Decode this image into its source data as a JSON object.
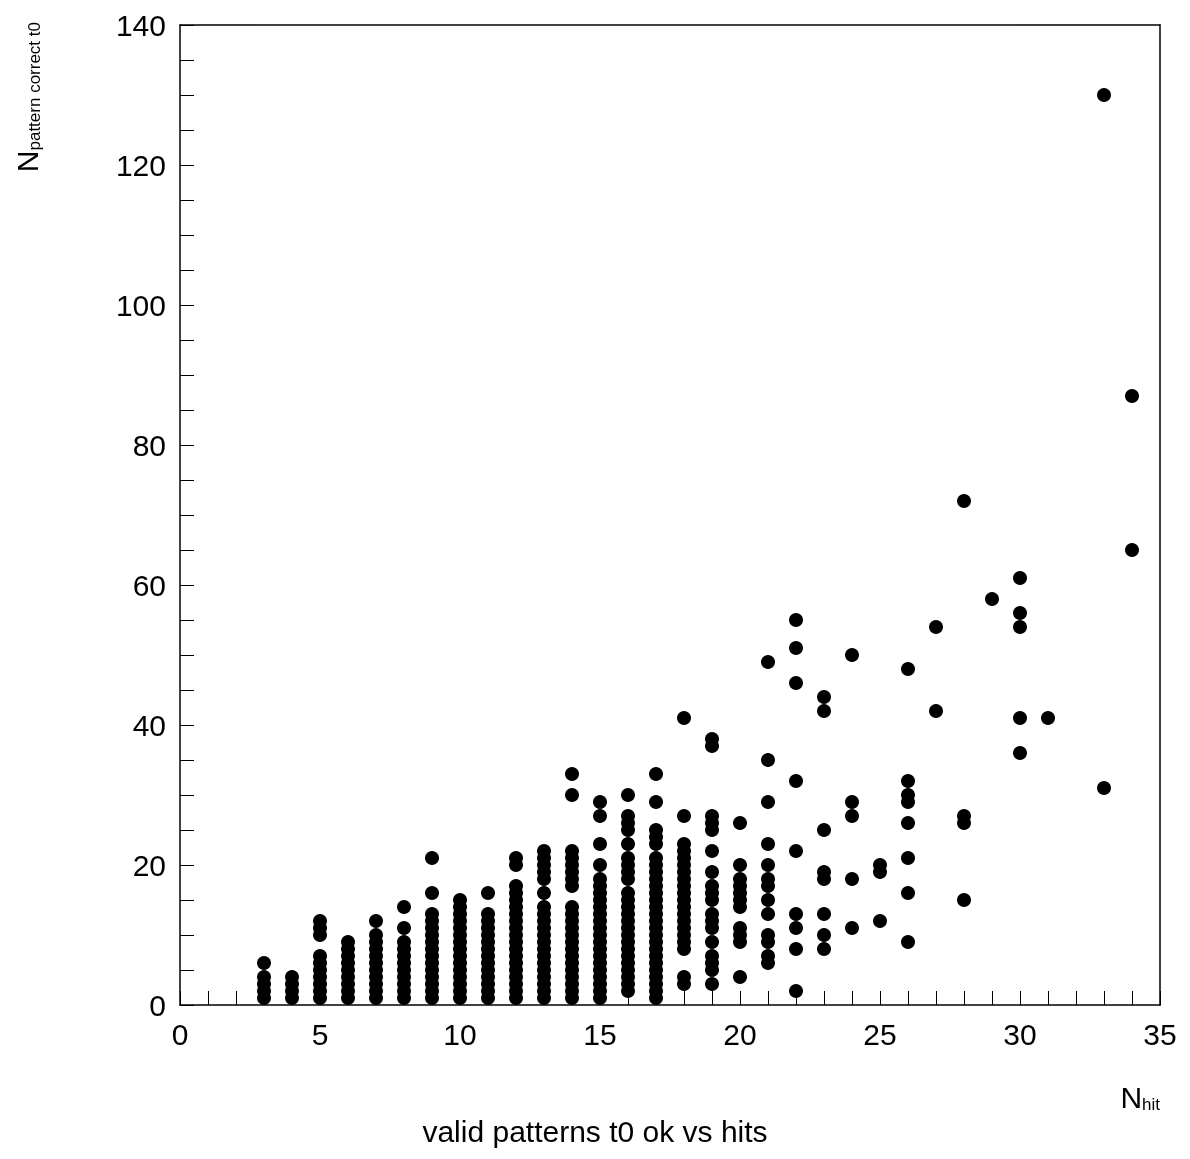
{
  "chart_data": {
    "type": "scatter",
    "title": "valid patterns t0 ok vs hits",
    "xlabel": "N$_{hit}$",
    "ylabel": "N$_{pattern correct t0}$",
    "xlim": [
      0,
      35
    ],
    "ylim": [
      0,
      140
    ],
    "xticks": [
      0,
      {
        "value": 1,
        "label": null
      },
      {
        "value": 2,
        "label": null
      },
      {
        "value": 3,
        "label": null
      },
      {
        "value": 4,
        "label": null
      },
      5,
      {
        "value": 6,
        "label": null
      },
      {
        "value": 7,
        "label": null
      },
      {
        "value": 8,
        "label": null
      },
      {
        "value": 9,
        "label": null
      },
      10,
      {
        "value": 11,
        "label": null
      },
      {
        "value": 12,
        "label": null
      },
      {
        "value": 13,
        "label": null
      },
      {
        "value": 14,
        "label": null
      },
      15,
      {
        "value": 16,
        "label": null
      },
      {
        "value": 17,
        "label": null
      },
      {
        "value": 18,
        "label": null
      },
      {
        "value": 19,
        "label": null
      },
      20,
      {
        "value": 21,
        "label": null
      },
      {
        "value": 22,
        "label": null
      },
      {
        "value": 23,
        "label": null
      },
      {
        "value": 24,
        "label": null
      },
      25,
      {
        "value": 26,
        "label": null
      },
      {
        "value": 27,
        "label": null
      },
      {
        "value": 28,
        "label": null
      },
      {
        "value": 29,
        "label": null
      },
      30,
      {
        "value": 31,
        "label": null
      },
      {
        "value": 32,
        "label": null
      },
      {
        "value": 33,
        "label": null
      },
      {
        "value": 34,
        "label": null
      },
      35
    ],
    "yticks": [
      0,
      {
        "value": 5,
        "label": null
      },
      {
        "value": 10,
        "label": null
      },
      {
        "value": 15,
        "label": null
      },
      20,
      {
        "value": 25,
        "label": null
      },
      {
        "value": 30,
        "label": null
      },
      {
        "value": 35,
        "label": null
      },
      40,
      {
        "value": 45,
        "label": null
      },
      {
        "value": 50,
        "label": null
      },
      {
        "value": 55,
        "label": null
      },
      60,
      {
        "value": 65,
        "label": null
      },
      {
        "value": 70,
        "label": null
      },
      {
        "value": 75,
        "label": null
      },
      80,
      {
        "value": 85,
        "label": null
      },
      {
        "value": 90,
        "label": null
      },
      {
        "value": 95,
        "label": null
      },
      100,
      {
        "value": 105,
        "label": null
      },
      {
        "value": 110,
        "label": null
      },
      {
        "value": 115,
        "label": null
      },
      120,
      {
        "value": 125,
        "label": null
      },
      {
        "value": 130,
        "label": null
      },
      {
        "value": 135,
        "label": null
      },
      140
    ],
    "grid": false,
    "marker": "circle",
    "series": [
      {
        "color": "#000000",
        "x": [
          3,
          3,
          3,
          3,
          3
        ],
        "values": [
          1,
          2,
          3,
          4,
          6
        ]
      },
      {
        "color": "#000000",
        "x": [
          4,
          4,
          4,
          4
        ],
        "values": [
          1,
          2,
          3,
          4
        ]
      },
      {
        "color": "#000000",
        "x": [
          5,
          5,
          5,
          5,
          5,
          5,
          5,
          5,
          5,
          5
        ],
        "values": [
          1,
          2,
          3,
          4,
          5,
          6,
          7,
          10,
          11,
          12
        ]
      },
      {
        "color": "#000000",
        "x": [
          6,
          6,
          6,
          6,
          6,
          6,
          6,
          6,
          6
        ],
        "values": [
          1,
          2,
          3,
          4,
          5,
          6,
          7,
          8,
          9
        ]
      },
      {
        "color": "#000000",
        "x": [
          7,
          7,
          7,
          7,
          7,
          7,
          7,
          7,
          7,
          7,
          7
        ],
        "values": [
          1,
          2,
          3,
          4,
          5,
          6,
          7,
          8,
          9,
          10,
          12
        ]
      },
      {
        "color": "#000000",
        "x": [
          8,
          8,
          8,
          8,
          8,
          8,
          8,
          8,
          8,
          8,
          8
        ],
        "values": [
          1,
          2,
          3,
          4,
          5,
          6,
          7,
          8,
          9,
          11,
          14
        ]
      },
      {
        "color": "#000000",
        "x": [
          9,
          9,
          9,
          9,
          9,
          9,
          9,
          9,
          9,
          9,
          9,
          9,
          9,
          9,
          9
        ],
        "values": [
          1,
          2,
          3,
          4,
          5,
          6,
          7,
          8,
          9,
          10,
          11,
          12,
          13,
          16,
          21
        ]
      },
      {
        "color": "#000000",
        "x": [
          10,
          10,
          10,
          10,
          10,
          10,
          10,
          10,
          10,
          10,
          10,
          10,
          10,
          10,
          10
        ],
        "values": [
          1,
          2,
          3,
          4,
          5,
          6,
          7,
          8,
          9,
          10,
          11,
          12,
          13,
          14,
          15
        ]
      },
      {
        "color": "#000000",
        "x": [
          11,
          11,
          11,
          11,
          11,
          11,
          11,
          11,
          11,
          11,
          11,
          11,
          11,
          11
        ],
        "values": [
          1,
          2,
          3,
          4,
          5,
          6,
          7,
          8,
          9,
          10,
          11,
          12,
          13,
          16
        ]
      },
      {
        "color": "#000000",
        "x": [
          12,
          12,
          12,
          12,
          12,
          12,
          12,
          12,
          12,
          12,
          12,
          12,
          12,
          12,
          12,
          12,
          12,
          12,
          12
        ],
        "values": [
          1,
          2,
          3,
          4,
          5,
          6,
          7,
          8,
          9,
          10,
          11,
          12,
          13,
          14,
          15,
          16,
          17,
          20,
          21
        ]
      },
      {
        "color": "#000000",
        "x": [
          13,
          13,
          13,
          13,
          13,
          13,
          13,
          13,
          13,
          13,
          13,
          13,
          13,
          13,
          13,
          13,
          13,
          13,
          13,
          13
        ],
        "values": [
          1,
          2,
          3,
          4,
          5,
          6,
          7,
          8,
          9,
          10,
          11,
          12,
          13,
          14,
          16,
          18,
          19,
          20,
          21,
          22
        ]
      },
      {
        "color": "#000000",
        "x": [
          14,
          14,
          14,
          14,
          14,
          14,
          14,
          14,
          14,
          14,
          14,
          14,
          14,
          14,
          14,
          14,
          14,
          14,
          14,
          14,
          14,
          14
        ],
        "values": [
          1,
          2,
          3,
          4,
          5,
          6,
          7,
          8,
          9,
          10,
          11,
          12,
          13,
          14,
          17,
          18,
          19,
          20,
          21,
          22,
          30,
          33
        ]
      },
      {
        "color": "#000000",
        "x": [
          15,
          15,
          15,
          15,
          15,
          15,
          15,
          15,
          15,
          15,
          15,
          15,
          15,
          15,
          15,
          15,
          15,
          15,
          15,
          15,
          15,
          15
        ],
        "values": [
          1,
          2,
          3,
          4,
          5,
          6,
          7,
          8,
          9,
          10,
          11,
          12,
          13,
          14,
          15,
          16,
          17,
          18,
          20,
          23,
          27,
          29
        ]
      },
      {
        "color": "#000000",
        "x": [
          16,
          16,
          16,
          16,
          16,
          16,
          16,
          16,
          16,
          16,
          16,
          16,
          16,
          16,
          16,
          16,
          16,
          16,
          16,
          16,
          16,
          16,
          16,
          16
        ],
        "values": [
          2,
          3,
          4,
          5,
          6,
          7,
          8,
          9,
          10,
          11,
          12,
          13,
          14,
          15,
          16,
          18,
          19,
          20,
          21,
          23,
          25,
          26,
          27,
          30
        ]
      },
      {
        "color": "#000000",
        "x": [
          17,
          17,
          17,
          17,
          17,
          17,
          17,
          17,
          17,
          17,
          17,
          17,
          17,
          17,
          17,
          17,
          17,
          17,
          17,
          17,
          17,
          17,
          17,
          17,
          17,
          17
        ],
        "values": [
          1,
          2,
          3,
          4,
          5,
          6,
          7,
          8,
          9,
          10,
          11,
          12,
          13,
          14,
          15,
          16,
          17,
          18,
          19,
          20,
          21,
          23,
          24,
          25,
          29,
          33
        ]
      },
      {
        "color": "#000000",
        "x": [
          18,
          18,
          18,
          18,
          18,
          18,
          18,
          18,
          18,
          18,
          18,
          18,
          18,
          18,
          18,
          18,
          18,
          18,
          18,
          18
        ],
        "values": [
          3,
          4,
          8,
          9,
          10,
          11,
          12,
          13,
          14,
          15,
          16,
          17,
          18,
          19,
          20,
          21,
          22,
          23,
          27,
          41
        ]
      },
      {
        "color": "#000000",
        "x": [
          19,
          19,
          19,
          19,
          19,
          19,
          19,
          19,
          19,
          19,
          19,
          19,
          19,
          19,
          19,
          19,
          19,
          19
        ],
        "values": [
          3,
          5,
          6,
          7,
          9,
          11,
          12,
          13,
          15,
          16,
          17,
          19,
          22,
          25,
          26,
          27,
          37,
          38
        ]
      },
      {
        "color": "#000000",
        "x": [
          20,
          20,
          20,
          20,
          20,
          20,
          20,
          20,
          20,
          20,
          20
        ],
        "values": [
          4,
          9,
          10,
          11,
          14,
          15,
          16,
          17,
          18,
          20,
          26
        ]
      },
      {
        "color": "#000000",
        "x": [
          21,
          21,
          21,
          21,
          21,
          21,
          21,
          21,
          21,
          21,
          21,
          21,
          21
        ],
        "values": [
          6,
          7,
          9,
          10,
          13,
          15,
          17,
          18,
          20,
          23,
          29,
          35,
          49
        ]
      },
      {
        "color": "#000000",
        "x": [
          22,
          22,
          22,
          22,
          22,
          22,
          22,
          22,
          22
        ],
        "values": [
          2,
          8,
          11,
          13,
          22,
          32,
          46,
          51,
          55
        ]
      },
      {
        "color": "#000000",
        "x": [
          23,
          23,
          23,
          23,
          23,
          23,
          23,
          23
        ],
        "values": [
          8,
          10,
          13,
          18,
          19,
          25,
          42,
          44
        ]
      },
      {
        "color": "#000000",
        "x": [
          24,
          24,
          24,
          24,
          24
        ],
        "values": [
          11,
          18,
          27,
          29,
          50
        ]
      },
      {
        "color": "#000000",
        "x": [
          25,
          25,
          25
        ],
        "values": [
          12,
          19,
          20
        ]
      },
      {
        "color": "#000000",
        "x": [
          26,
          26,
          26,
          26,
          26,
          26,
          26,
          26
        ],
        "values": [
          9,
          16,
          21,
          26,
          29,
          30,
          32,
          48
        ]
      },
      {
        "color": "#000000",
        "x": [
          27,
          27
        ],
        "values": [
          42,
          54
        ]
      },
      {
        "color": "#000000",
        "x": [
          28,
          28,
          28,
          28
        ],
        "values": [
          15,
          26,
          27,
          72
        ]
      },
      {
        "color": "#000000",
        "x": [
          29
        ],
        "values": [
          58
        ]
      },
      {
        "color": "#000000",
        "x": [
          30,
          30,
          30,
          30,
          30
        ],
        "values": [
          36,
          41,
          54,
          56,
          61
        ]
      },
      {
        "color": "#000000",
        "x": [
          31
        ],
        "values": [
          41
        ]
      },
      {
        "color": "#000000",
        "x": [
          33,
          33
        ],
        "values": [
          31,
          130
        ]
      },
      {
        "color": "#000000",
        "x": [
          34,
          34
        ],
        "values": [
          65,
          87
        ]
      }
    ]
  }
}
